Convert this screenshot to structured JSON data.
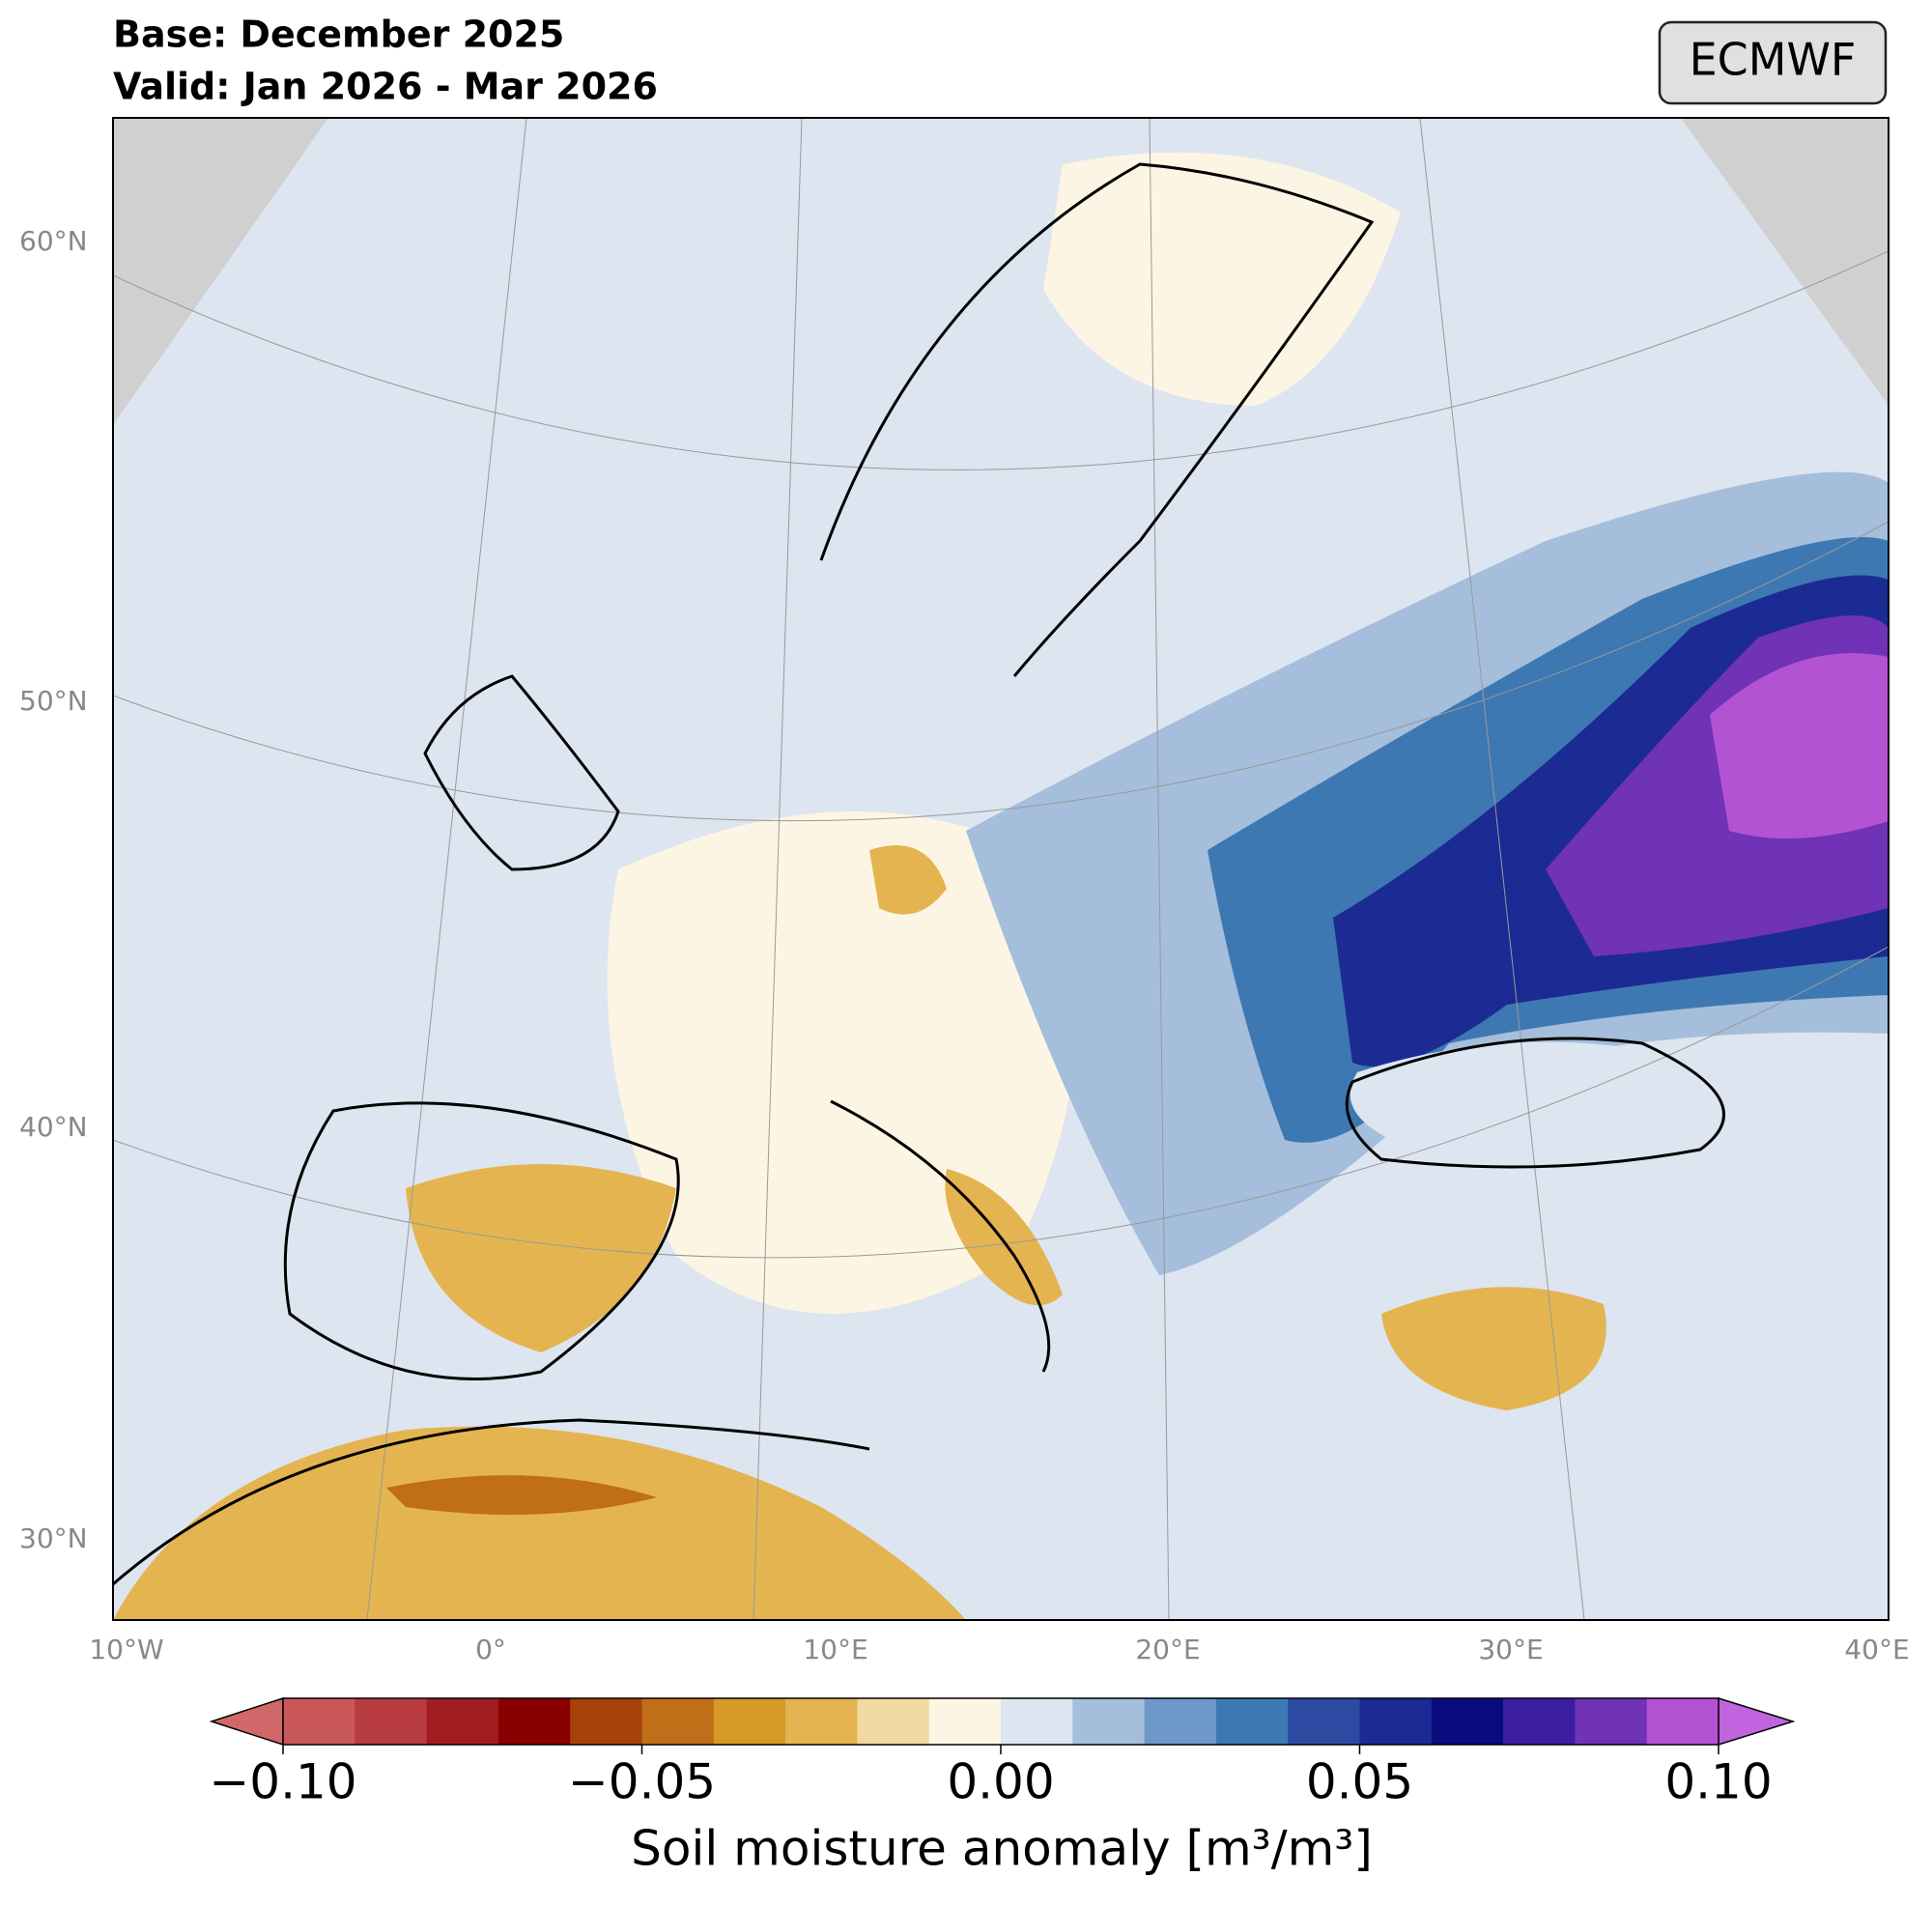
{
  "header": {
    "base": "Base: December 2025",
    "valid": "Valid: Jan 2026 - Mar 2026",
    "badge": "ECMWF"
  },
  "map": {
    "lat_labels": [
      "60°N",
      "50°N",
      "40°N",
      "30°N"
    ],
    "lon_labels": [
      "10°W",
      "0°",
      "10°E",
      "20°E",
      "30°E",
      "40°E"
    ]
  },
  "colorbar": {
    "label": "Soil moisture anomaly [m³/m³]",
    "levels": [
      -0.1,
      -0.09,
      -0.08,
      -0.07,
      -0.06,
      -0.05,
      -0.04,
      -0.03,
      -0.02,
      -0.01,
      0,
      0.01,
      0.02,
      0.03,
      0.04,
      0.05,
      0.06,
      0.07,
      0.08,
      0.09,
      0.1
    ],
    "colors": [
      "#c9575a",
      "#b93c40",
      "#a01c20",
      "#8a0000",
      "#a8400c",
      "#c06e18",
      "#d89a26",
      "#e4b450",
      "#f0d9a2",
      "#fdf5e4",
      "#dde5f0",
      "#a4bedb",
      "#6e98c8",
      "#3e78b2",
      "#2c4aa2",
      "#1c2a94",
      "#080c7e",
      "#3c1ea0",
      "#7032b6",
      "#b452d4"
    ],
    "under_color": "#d0686a",
    "over_color": "#c064e0",
    "ticks": [
      {
        "value": -0.1,
        "label": "−0.10"
      },
      {
        "value": -0.05,
        "label": "−0.05"
      },
      {
        "value": 0,
        "label": "0.00"
      },
      {
        "value": 0.05,
        "label": "0.05"
      },
      {
        "value": 0.1,
        "label": "0.10"
      }
    ]
  }
}
